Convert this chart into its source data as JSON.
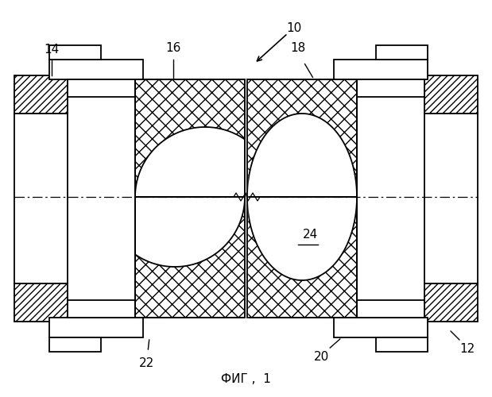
{
  "fig_width": 6.19,
  "fig_height": 5.0,
  "dpi": 100,
  "bg_color": "#ffffff",
  "line_color": "#000000",
  "title": "ФИГ ,  1",
  "title_fontsize": 11
}
